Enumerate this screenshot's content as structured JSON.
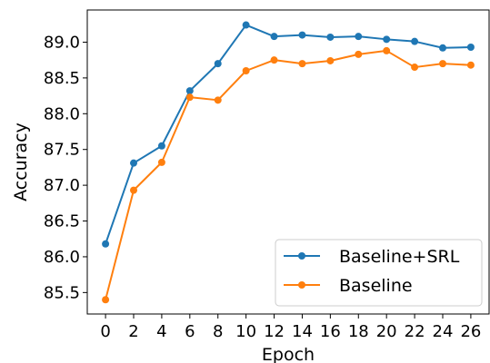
{
  "chart_data": {
    "type": "line",
    "title": "",
    "xlabel": "Epoch",
    "ylabel": "Accuracy",
    "x": [
      0,
      2,
      4,
      6,
      8,
      10,
      12,
      14,
      16,
      18,
      20,
      22,
      24,
      26
    ],
    "xticks": [
      "0",
      "2",
      "4",
      "6",
      "8",
      "10",
      "12",
      "14",
      "16",
      "18",
      "20",
      "22",
      "24",
      "26"
    ],
    "yticks": [
      "85.5",
      "86.0",
      "86.5",
      "87.0",
      "87.5",
      "88.0",
      "88.5",
      "89.0"
    ],
    "xlim": [
      -1.3,
      27.3
    ],
    "ylim": [
      85.2,
      89.45
    ],
    "grid": false,
    "legend_position": "lower-right",
    "series": [
      {
        "name": "Baseline+SRL",
        "color": "#1f77b4",
        "marker": "circle",
        "values": [
          86.18,
          87.31,
          87.55,
          88.32,
          88.7,
          89.24,
          89.08,
          89.1,
          89.07,
          89.08,
          89.04,
          89.01,
          88.92,
          88.93
        ]
      },
      {
        "name": "Baseline",
        "color": "#ff7f0e",
        "marker": "circle",
        "values": [
          85.4,
          86.93,
          87.32,
          88.23,
          88.19,
          88.6,
          88.75,
          88.7,
          88.74,
          88.83,
          88.88,
          88.65,
          88.7,
          88.68
        ]
      }
    ]
  }
}
